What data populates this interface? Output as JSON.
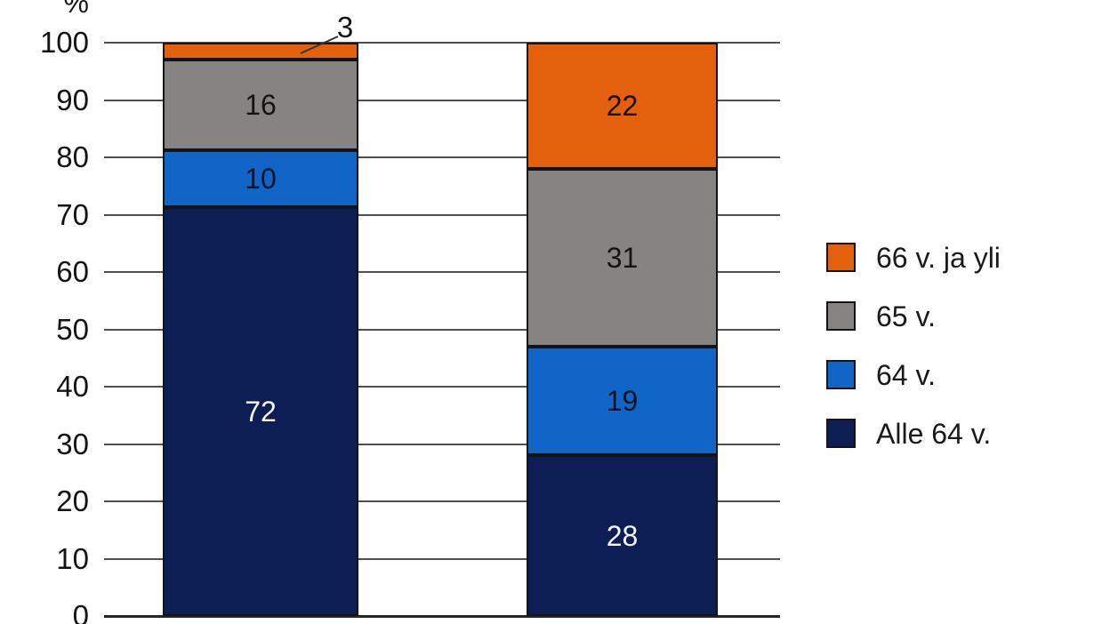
{
  "chart_data": {
    "type": "bar",
    "subtype": "stacked-column-percent",
    "title": "",
    "unit_label": "%",
    "categories": [
      "",
      ""
    ],
    "series": [
      {
        "name": "Alle 64 v.",
        "color": "#0D1E55",
        "label_color": "#F5F5F5",
        "values": [
          72,
          28
        ]
      },
      {
        "name": "64 v.",
        "color": "#1165C6",
        "label_color": "#0E1426",
        "values": [
          10,
          19
        ]
      },
      {
        "name": "65 v.",
        "color": "#868383",
        "label_color": "#141414",
        "values": [
          16,
          31
        ]
      },
      {
        "name": "66 v. ja yli",
        "color": "#E3610D",
        "label_color": "#1c0d05",
        "values": [
          3,
          22
        ]
      }
    ],
    "y_axis": {
      "min": 0,
      "max": 100,
      "step": 10,
      "tick_labels": [
        "0",
        "10",
        "20",
        "30",
        "40",
        "50",
        "60",
        "70",
        "80",
        "90",
        "100"
      ]
    },
    "legend": {
      "position": "right",
      "entries": [
        "66 v. ja yli",
        "65 v.",
        "64 v.",
        "Alle 64 v."
      ]
    },
    "callout": {
      "text": "3",
      "series": "66 v. ja yli",
      "bar_index": 0
    },
    "gridlines": true,
    "colors": {
      "gridline": "#4f4f4f",
      "axis_line": "#262626",
      "segment_border": "#141414"
    }
  }
}
